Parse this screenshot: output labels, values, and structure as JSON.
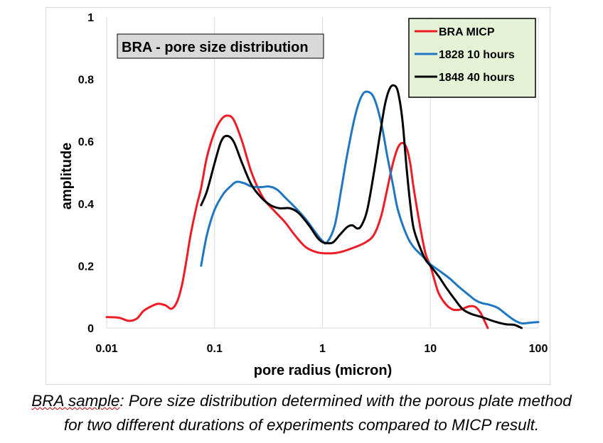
{
  "chart_data": {
    "type": "line",
    "title": "BRA - pore size distribution",
    "xlabel": "pore radius (micron)",
    "ylabel": "amplitude",
    "xscale": "log",
    "xlim": [
      0.01,
      100
    ],
    "ylim": [
      0,
      1
    ],
    "xticks": [
      "0.01",
      "0.1",
      "1",
      "10",
      "100"
    ],
    "yticks": [
      "0",
      "0.2",
      "0.4",
      "0.6",
      "0.8",
      "1"
    ],
    "grid": "vertical",
    "legend_position": "top-right",
    "series": [
      {
        "name": "BRA MICP",
        "color": "#ee1c25",
        "points": [
          [
            0.01,
            0.035
          ],
          [
            0.013,
            0.033
          ],
          [
            0.016,
            0.023
          ],
          [
            0.019,
            0.03
          ],
          [
            0.022,
            0.055
          ],
          [
            0.026,
            0.07
          ],
          [
            0.03,
            0.078
          ],
          [
            0.035,
            0.073
          ],
          [
            0.04,
            0.062
          ],
          [
            0.045,
            0.085
          ],
          [
            0.05,
            0.14
          ],
          [
            0.055,
            0.22
          ],
          [
            0.06,
            0.3
          ],
          [
            0.068,
            0.39
          ],
          [
            0.075,
            0.45
          ],
          [
            0.085,
            0.55
          ],
          [
            0.1,
            0.63
          ],
          [
            0.115,
            0.67
          ],
          [
            0.13,
            0.683
          ],
          [
            0.15,
            0.67
          ],
          [
            0.18,
            0.6
          ],
          [
            0.22,
            0.5
          ],
          [
            0.28,
            0.42
          ],
          [
            0.35,
            0.38
          ],
          [
            0.45,
            0.34
          ],
          [
            0.55,
            0.3
          ],
          [
            0.7,
            0.26
          ],
          [
            0.9,
            0.243
          ],
          [
            1.2,
            0.24
          ],
          [
            1.5,
            0.245
          ],
          [
            2,
            0.26
          ],
          [
            2.5,
            0.275
          ],
          [
            3,
            0.3
          ],
          [
            3.5,
            0.36
          ],
          [
            4,
            0.45
          ],
          [
            4.5,
            0.53
          ],
          [
            5,
            0.58
          ],
          [
            5.5,
            0.595
          ],
          [
            6,
            0.58
          ],
          [
            6.5,
            0.53
          ],
          [
            7,
            0.45
          ],
          [
            8,
            0.33
          ],
          [
            9,
            0.24
          ],
          [
            10,
            0.2
          ],
          [
            11,
            0.15
          ],
          [
            12,
            0.11
          ],
          [
            14,
            0.075
          ],
          [
            16,
            0.06
          ],
          [
            18,
            0.058
          ],
          [
            20,
            0.062
          ],
          [
            23,
            0.07
          ],
          [
            26,
            0.068
          ],
          [
            29,
            0.05
          ],
          [
            32,
            0.02
          ],
          [
            34,
            0.0
          ]
        ]
      },
      {
        "name": "1828 10 hours",
        "color": "#1f77c4",
        "points": [
          [
            0.075,
            0.2
          ],
          [
            0.085,
            0.3
          ],
          [
            0.1,
            0.38
          ],
          [
            0.12,
            0.43
          ],
          [
            0.14,
            0.455
          ],
          [
            0.16,
            0.47
          ],
          [
            0.19,
            0.465
          ],
          [
            0.22,
            0.455
          ],
          [
            0.27,
            0.453
          ],
          [
            0.32,
            0.455
          ],
          [
            0.38,
            0.445
          ],
          [
            0.45,
            0.42
          ],
          [
            0.55,
            0.39
          ],
          [
            0.7,
            0.35
          ],
          [
            0.85,
            0.31
          ],
          [
            1.0,
            0.28
          ],
          [
            1.1,
            0.275
          ],
          [
            1.3,
            0.33
          ],
          [
            1.5,
            0.45
          ],
          [
            1.7,
            0.56
          ],
          [
            2.0,
            0.68
          ],
          [
            2.3,
            0.745
          ],
          [
            2.6,
            0.76
          ],
          [
            3.0,
            0.74
          ],
          [
            3.5,
            0.66
          ],
          [
            4.0,
            0.55
          ],
          [
            4.5,
            0.46
          ],
          [
            5.0,
            0.38
          ],
          [
            6.0,
            0.3
          ],
          [
            7.0,
            0.26
          ],
          [
            8.5,
            0.23
          ],
          [
            10,
            0.205
          ],
          [
            12,
            0.185
          ],
          [
            15,
            0.16
          ],
          [
            18,
            0.135
          ],
          [
            22,
            0.11
          ],
          [
            26,
            0.09
          ],
          [
            30,
            0.08
          ],
          [
            35,
            0.075
          ],
          [
            42,
            0.065
          ],
          [
            50,
            0.045
          ],
          [
            60,
            0.025
          ],
          [
            70,
            0.015
          ],
          [
            80,
            0.016
          ],
          [
            90,
            0.018
          ],
          [
            100,
            0.019
          ]
        ]
      },
      {
        "name": "1848 40 hours",
        "color": "#000000",
        "points": [
          [
            0.075,
            0.395
          ],
          [
            0.085,
            0.44
          ],
          [
            0.1,
            0.53
          ],
          [
            0.115,
            0.6
          ],
          [
            0.13,
            0.618
          ],
          [
            0.15,
            0.6
          ],
          [
            0.18,
            0.53
          ],
          [
            0.22,
            0.46
          ],
          [
            0.27,
            0.42
          ],
          [
            0.33,
            0.395
          ],
          [
            0.4,
            0.385
          ],
          [
            0.5,
            0.385
          ],
          [
            0.6,
            0.37
          ],
          [
            0.75,
            0.33
          ],
          [
            0.9,
            0.29
          ],
          [
            1.0,
            0.276
          ],
          [
            1.1,
            0.273
          ],
          [
            1.25,
            0.275
          ],
          [
            1.45,
            0.3
          ],
          [
            1.7,
            0.325
          ],
          [
            1.9,
            0.33
          ],
          [
            2.1,
            0.32
          ],
          [
            2.3,
            0.33
          ],
          [
            2.6,
            0.38
          ],
          [
            3.0,
            0.5
          ],
          [
            3.4,
            0.62
          ],
          [
            3.8,
            0.72
          ],
          [
            4.2,
            0.77
          ],
          [
            4.6,
            0.78
          ],
          [
            5.0,
            0.76
          ],
          [
            5.5,
            0.67
          ],
          [
            6.0,
            0.52
          ],
          [
            6.5,
            0.4
          ],
          [
            7.0,
            0.32
          ],
          [
            8.0,
            0.26
          ],
          [
            9.0,
            0.22
          ],
          [
            10,
            0.2
          ],
          [
            12,
            0.165
          ],
          [
            14,
            0.13
          ],
          [
            17,
            0.09
          ],
          [
            20,
            0.06
          ],
          [
            24,
            0.045
          ],
          [
            30,
            0.035
          ],
          [
            40,
            0.02
          ],
          [
            50,
            0.012
          ],
          [
            60,
            0.01
          ],
          [
            70,
            0.0
          ]
        ]
      }
    ]
  },
  "caption": {
    "line1_sample": "BRA sample",
    "line1_rest": ": Pore size distribution determined with the porous plate method",
    "line2": "for two different durations of experiments compared to MICP result."
  }
}
